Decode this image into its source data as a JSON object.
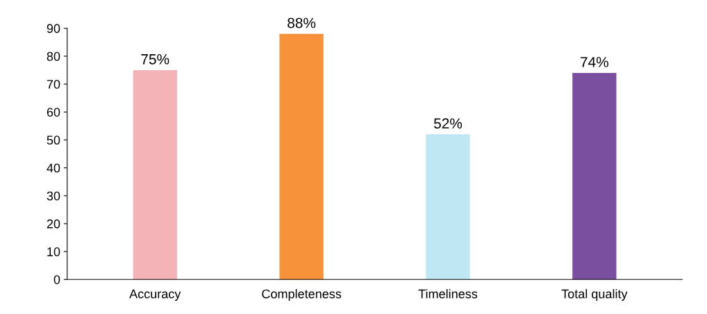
{
  "chart_data": {
    "type": "bar",
    "categories": [
      "Accuracy",
      "Completeness",
      "Timeliness",
      "Total quality"
    ],
    "values": [
      75,
      88,
      52,
      74
    ],
    "value_labels": [
      "75%",
      "88%",
      "52%",
      "74%"
    ],
    "colors": [
      "#f4b3b6",
      "#f7923a",
      "#bfe6f3",
      "#7a4f9f"
    ],
    "ylim": [
      0,
      90
    ],
    "yticks": [
      0,
      10,
      20,
      30,
      40,
      50,
      60,
      70,
      80,
      90
    ],
    "grid": false,
    "legend": false
  }
}
